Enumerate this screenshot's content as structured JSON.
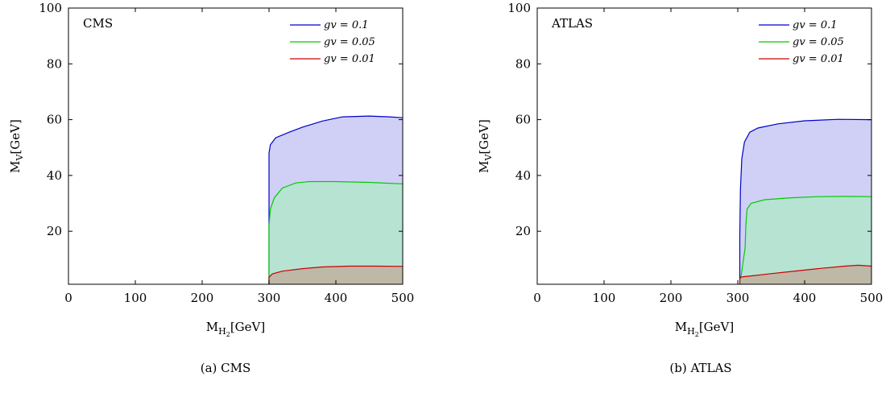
{
  "chart_data": [
    {
      "type": "area",
      "title": "CMS",
      "caption": "(a) CMS",
      "xlabel": "M",
      "xlabel_sub": "H",
      "xlabel_subsub": "2",
      "xlabel_unit": "[GeV]",
      "ylabel": "M",
      "ylabel_sub": "V",
      "ylabel_unit": "[GeV]",
      "xlim": [
        0,
        500
      ],
      "ylim": [
        1,
        100
      ],
      "xticks": [
        0,
        100,
        200,
        300,
        400,
        500
      ],
      "yticks": [
        20,
        40,
        60,
        80,
        100
      ],
      "xtick_labels": [
        "0",
        "100",
        "200",
        "300",
        "400",
        "500"
      ],
      "ytick_labels": [
        "20",
        "40",
        "60",
        "80",
        "100"
      ],
      "legend_position": "top-right",
      "series": [
        {
          "name": "gv = 0.1",
          "color": "#0000cc",
          "fill": "#c8c8f5",
          "points": [
            [
              300,
              1
            ],
            [
              300,
              48
            ],
            [
              302,
              51
            ],
            [
              310,
              53.5
            ],
            [
              330,
              55.5
            ],
            [
              350,
              57.3
            ],
            [
              380,
              59.5
            ],
            [
              410,
              61
            ],
            [
              450,
              61.3
            ],
            [
              480,
              61
            ],
            [
              500,
              60.7
            ],
            [
              500,
              1
            ]
          ]
        },
        {
          "name": "gv = 0.05",
          "color": "#00cc00",
          "fill": "#b3e6cc",
          "points": [
            [
              300,
              1
            ],
            [
              300,
              22
            ],
            [
              302,
              28
            ],
            [
              308,
              32
            ],
            [
              320,
              35.5
            ],
            [
              340,
              37.3
            ],
            [
              360,
              37.8
            ],
            [
              400,
              37.8
            ],
            [
              450,
              37.5
            ],
            [
              500,
              37
            ],
            [
              500,
              1
            ]
          ]
        },
        {
          "name": "gv = 0.01",
          "color": "#cc0000",
          "fill": "#c0b09d",
          "points": [
            [
              300,
              1
            ],
            [
              300,
              3.5
            ],
            [
              305,
              4.7
            ],
            [
              320,
              5.7
            ],
            [
              350,
              6.6
            ],
            [
              380,
              7.2
            ],
            [
              420,
              7.5
            ],
            [
              460,
              7.5
            ],
            [
              500,
              7.4
            ],
            [
              500,
              1
            ]
          ]
        }
      ]
    },
    {
      "type": "area",
      "title": "ATLAS",
      "caption": "(b) ATLAS",
      "xlabel": "M",
      "xlabel_sub": "H",
      "xlabel_subsub": "2",
      "xlabel_unit": "[GeV]",
      "ylabel": "M",
      "ylabel_sub": "V",
      "ylabel_unit": "[GeV]",
      "xlim": [
        0,
        500
      ],
      "ylim": [
        1,
        100
      ],
      "xticks": [
        0,
        100,
        200,
        300,
        400,
        500
      ],
      "yticks": [
        20,
        40,
        60,
        80,
        100
      ],
      "xtick_labels": [
        "0",
        "100",
        "200",
        "300",
        "400",
        "500"
      ],
      "ytick_labels": [
        "20",
        "40",
        "60",
        "80",
        "100"
      ],
      "legend_position": "top-right",
      "series": [
        {
          "name": "gv = 0.1",
          "color": "#0000cc",
          "fill": "#c8c8f5",
          "points": [
            [
              303,
              1
            ],
            [
              303,
              18
            ],
            [
              304,
              35
            ],
            [
              306,
              46
            ],
            [
              310,
              52
            ],
            [
              318,
              55.5
            ],
            [
              330,
              57
            ],
            [
              360,
              58.5
            ],
            [
              400,
              59.6
            ],
            [
              450,
              60.1
            ],
            [
              500,
              60
            ],
            [
              500,
              1
            ]
          ]
        },
        {
          "name": "gv = 0.05",
          "color": "#00cc00",
          "fill": "#b3e6cc",
          "points": [
            [
              303,
              1
            ],
            [
              305,
              4
            ],
            [
              308,
              9
            ],
            [
              311,
              14
            ],
            [
              312,
              22
            ],
            [
              314,
              28
            ],
            [
              320,
              30
            ],
            [
              340,
              31.3
            ],
            [
              380,
              32
            ],
            [
              420,
              32.4
            ],
            [
              460,
              32.5
            ],
            [
              500,
              32.4
            ],
            [
              500,
              1
            ]
          ]
        },
        {
          "name": "gv = 0.01",
          "color": "#cc0000",
          "fill": "#c0b09d",
          "points": [
            [
              303,
              1
            ],
            [
              303,
              3
            ],
            [
              305,
              3.6
            ],
            [
              320,
              4
            ],
            [
              350,
              4.8
            ],
            [
              380,
              5.6
            ],
            [
              420,
              6.6
            ],
            [
              460,
              7.5
            ],
            [
              480,
              7.8
            ],
            [
              500,
              7.5
            ],
            [
              500,
              1
            ]
          ]
        }
      ]
    }
  ]
}
